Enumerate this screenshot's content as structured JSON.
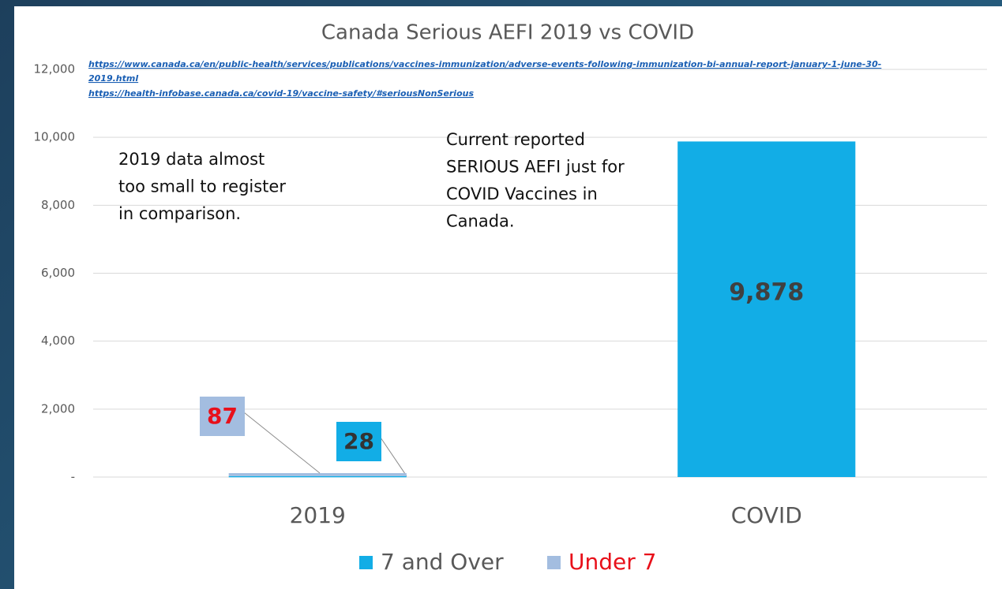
{
  "chart_data": {
    "type": "stacked_bar",
    "title": "Canada Serious AEFI  2019 vs COVID",
    "sources": [
      "https://www.canada.ca/en/public-health/services/publications/vaccines-immunization/adverse-events-following-immunization-bi-annual-report-january-1-june-30-",
      "2019.html",
      "https://health-infobase.canada.ca/covid-19/vaccine-safety/#seriousNonSerious"
    ],
    "annotations": [
      {
        "lines": [
          "2019 data almost",
          "too small to register",
          "in comparison."
        ]
      },
      {
        "lines": [
          "Current reported",
          "SERIOUS AEFI just for",
          "COVID Vaccines in",
          "Canada."
        ]
      }
    ],
    "categories": [
      "2019",
      "COVID"
    ],
    "series": [
      {
        "name": "7 and Over",
        "color": "#12ade6",
        "values": [
          28,
          9878
        ],
        "value_labels": [
          "28",
          "9,878"
        ]
      },
      {
        "name": "Under 7",
        "color": "#a3bde0",
        "values": [
          87,
          null
        ],
        "value_labels": [
          "87",
          null
        ]
      }
    ],
    "ylim": [
      0,
      12000
    ],
    "yticks": [
      {
        "value": 0,
        "label": "-"
      },
      {
        "value": 2000,
        "label": "2,000"
      },
      {
        "value": 4000,
        "label": "4,000"
      },
      {
        "value": 6000,
        "label": "6,000"
      },
      {
        "value": 8000,
        "label": "8,000"
      },
      {
        "value": 10000,
        "label": "10,000"
      },
      {
        "value": 12000,
        "label": "12,000"
      }
    ],
    "grid": true
  }
}
